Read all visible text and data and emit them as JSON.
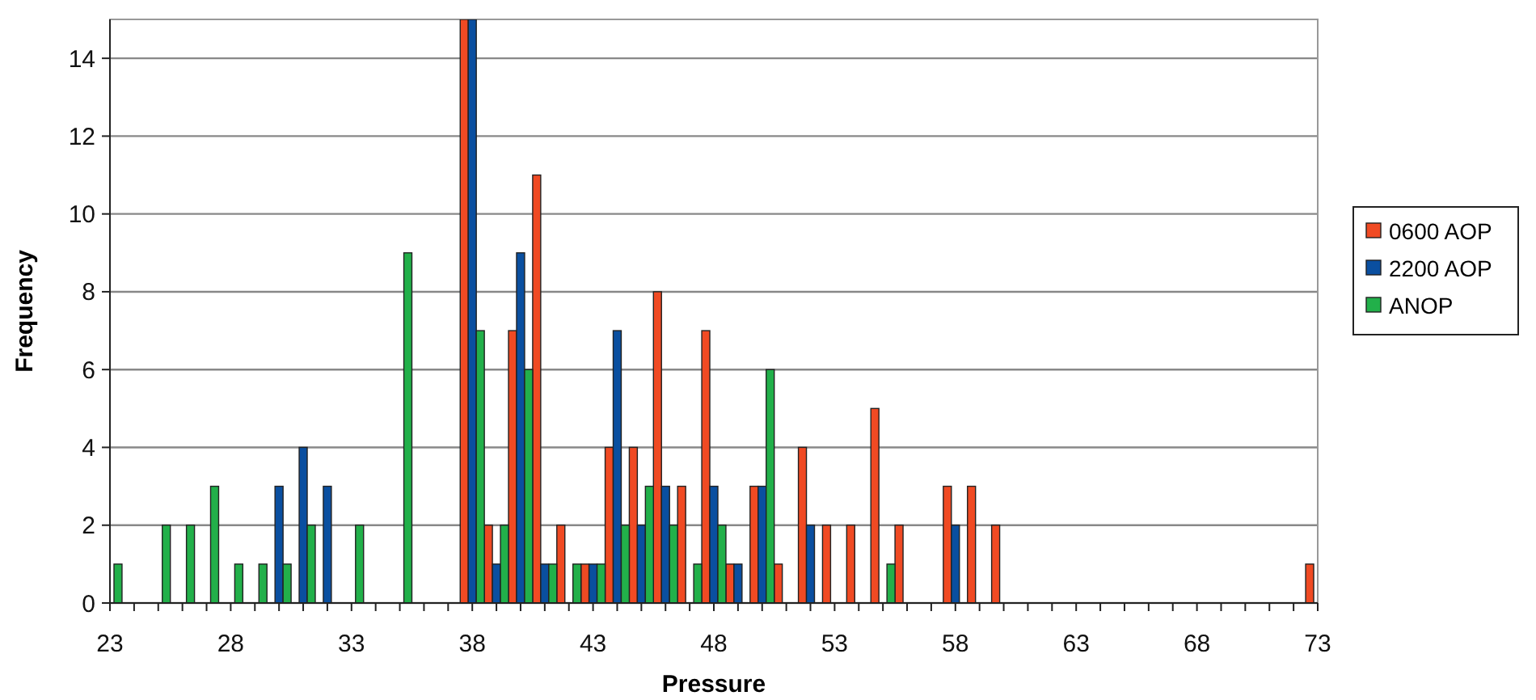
{
  "chart_data": {
    "type": "bar",
    "xlabel": "Pressure",
    "ylabel": "Frequency",
    "x": [
      23,
      24,
      25,
      26,
      27,
      28,
      29,
      30,
      31,
      32,
      33,
      34,
      35,
      36,
      37,
      38,
      39,
      40,
      41,
      42,
      43,
      44,
      45,
      46,
      47,
      48,
      49,
      50,
      51,
      52,
      53,
      54,
      55,
      56,
      57,
      58,
      59,
      60,
      61,
      62,
      63,
      64,
      65,
      66,
      67,
      68,
      69,
      70,
      71,
      72,
      73
    ],
    "series": [
      {
        "name": "0600 AOP",
        "color": "#f04a23",
        "values": [
          0,
          0,
          0,
          0,
          0,
          0,
          0,
          0,
          0,
          0,
          0,
          0,
          0,
          0,
          0,
          15,
          2,
          7,
          11,
          2,
          1,
          4,
          4,
          8,
          3,
          7,
          1,
          3,
          1,
          4,
          2,
          2,
          5,
          2,
          0,
          3,
          3,
          2,
          0,
          0,
          0,
          0,
          0,
          0,
          0,
          0,
          0,
          0,
          0,
          0,
          1
        ]
      },
      {
        "name": "2200 AOP",
        "color": "#0a4fa0",
        "values": [
          0,
          0,
          0,
          0,
          0,
          0,
          0,
          3,
          4,
          3,
          0,
          0,
          0,
          0,
          0,
          15,
          1,
          9,
          1,
          0,
          1,
          7,
          2,
          3,
          0,
          3,
          1,
          3,
          0,
          2,
          0,
          0,
          0,
          0,
          0,
          2,
          0,
          0,
          0,
          0,
          0,
          0,
          0,
          0,
          0,
          0,
          0,
          0,
          0,
          0,
          0
        ]
      },
      {
        "name": "ANOP",
        "color": "#22b04a",
        "values": [
          1,
          0,
          2,
          2,
          3,
          1,
          1,
          1,
          2,
          0,
          2,
          0,
          9,
          0,
          0,
          7,
          2,
          6,
          1,
          1,
          1,
          2,
          3,
          2,
          1,
          2,
          0,
          6,
          0,
          0,
          0,
          0,
          1,
          0,
          0,
          0,
          0,
          0,
          0,
          0,
          0,
          0,
          0,
          0,
          0,
          0,
          0,
          0,
          0,
          0,
          0
        ]
      }
    ],
    "xlim": [
      23,
      73
    ],
    "xticks": [
      23,
      {
        "value": 24,
        "label": null
      },
      {
        "value": 25,
        "label": null
      },
      {
        "value": 26,
        "label": null
      },
      {
        "value": 27,
        "label": null
      },
      28,
      {
        "value": 29,
        "label": null
      },
      {
        "value": 30,
        "label": null
      },
      {
        "value": 31,
        "label": null
      },
      {
        "value": 32,
        "label": null
      },
      33,
      {
        "value": 34,
        "label": null
      },
      {
        "value": 35,
        "label": null
      },
      {
        "value": 36,
        "label": null
      },
      {
        "value": 37,
        "label": null
      },
      38,
      {
        "value": 39,
        "label": null
      },
      {
        "value": 40,
        "label": null
      },
      {
        "value": 41,
        "label": null
      },
      {
        "value": 42,
        "label": null
      },
      43,
      {
        "value": 44,
        "label": null
      },
      {
        "value": 45,
        "label": null
      },
      {
        "value": 46,
        "label": null
      },
      {
        "value": 47,
        "label": null
      },
      48,
      {
        "value": 49,
        "label": null
      },
      {
        "value": 50,
        "label": null
      },
      {
        "value": 51,
        "label": null
      },
      {
        "value": 52,
        "label": null
      },
      53,
      {
        "value": 54,
        "label": null
      },
      {
        "value": 55,
        "label": null
      },
      {
        "value": 56,
        "label": null
      },
      {
        "value": 57,
        "label": null
      },
      58,
      {
        "value": 59,
        "label": null
      },
      {
        "value": 60,
        "label": null
      },
      {
        "value": 61,
        "label": null
      },
      {
        "value": 62,
        "label": null
      },
      63,
      {
        "value": 64,
        "label": null
      },
      {
        "value": 65,
        "label": null
      },
      {
        "value": 66,
        "label": null
      },
      {
        "value": 67,
        "label": null
      },
      68,
      {
        "value": 69,
        "label": null
      },
      {
        "value": 70,
        "label": null
      },
      {
        "value": 71,
        "label": null
      },
      {
        "value": 72,
        "label": null
      },
      73
    ],
    "ylim": [
      0,
      15
    ],
    "yticks": [
      0,
      2,
      4,
      6,
      8,
      10,
      12,
      14
    ],
    "grid": "y",
    "legend": "right"
  }
}
